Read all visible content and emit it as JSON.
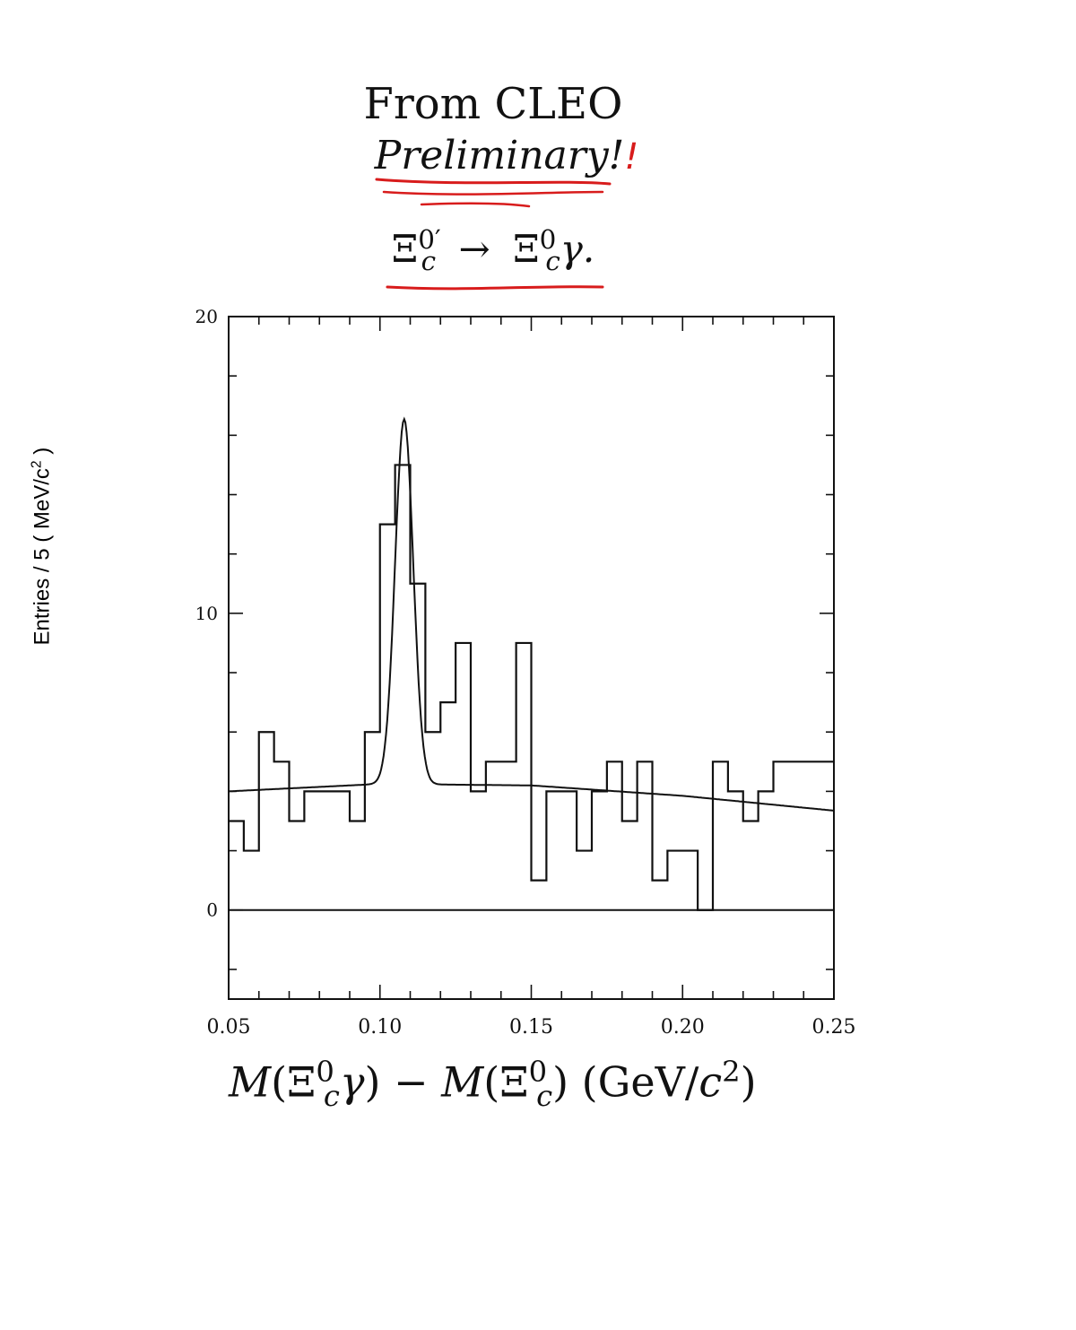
{
  "header": {
    "line1": "From CLEO",
    "line2": "Preliminary!",
    "line2_handwritten_mark": "!",
    "formula": {
      "lhs_base": "Ξ",
      "lhs_sup": "0′",
      "lhs_sub": "c",
      "arrow": "→",
      "rhs_base": "Ξ",
      "rhs_sup": "0",
      "rhs_sub": "c",
      "rhs_tail": "γ."
    }
  },
  "annotation_color": "#d81c1c",
  "chart_data": {
    "type": "bar",
    "subtype": "histogram-with-fit",
    "xlabel": "M(Ξc0γ) − M(Ξc0) (GeV/c2)",
    "ylabel": "Entries / 5 ( MeV/c2 )",
    "xlim": [
      0.05,
      0.25
    ],
    "ylim": [
      -3,
      20
    ],
    "xticks": [
      "0.05",
      "0.10",
      "0.15",
      "0.20",
      "0.25"
    ],
    "yticks": [
      "0",
      "10",
      "20"
    ],
    "bin_width": 0.005,
    "bin_edges_start": 0.05,
    "histogram": [
      3,
      2,
      6,
      5,
      3,
      4,
      4,
      4,
      3,
      6,
      13,
      15,
      11,
      6,
      7,
      9,
      4,
      5,
      5,
      9,
      1,
      4,
      4,
      2,
      4,
      5,
      3,
      5,
      1,
      2,
      2,
      0,
      5,
      4,
      3,
      4,
      5,
      5,
      5,
      5
    ],
    "fit": {
      "description": "Gaussian peak on smooth background",
      "peak_mean": 0.108,
      "peak_sigma": 0.003,
      "peak_height": 12.3,
      "background": [
        [
          0.05,
          4.0
        ],
        [
          0.1,
          4.25
        ],
        [
          0.15,
          4.2
        ],
        [
          0.2,
          3.85
        ],
        [
          0.25,
          3.35
        ]
      ]
    },
    "zero_line": true,
    "grid": false
  }
}
